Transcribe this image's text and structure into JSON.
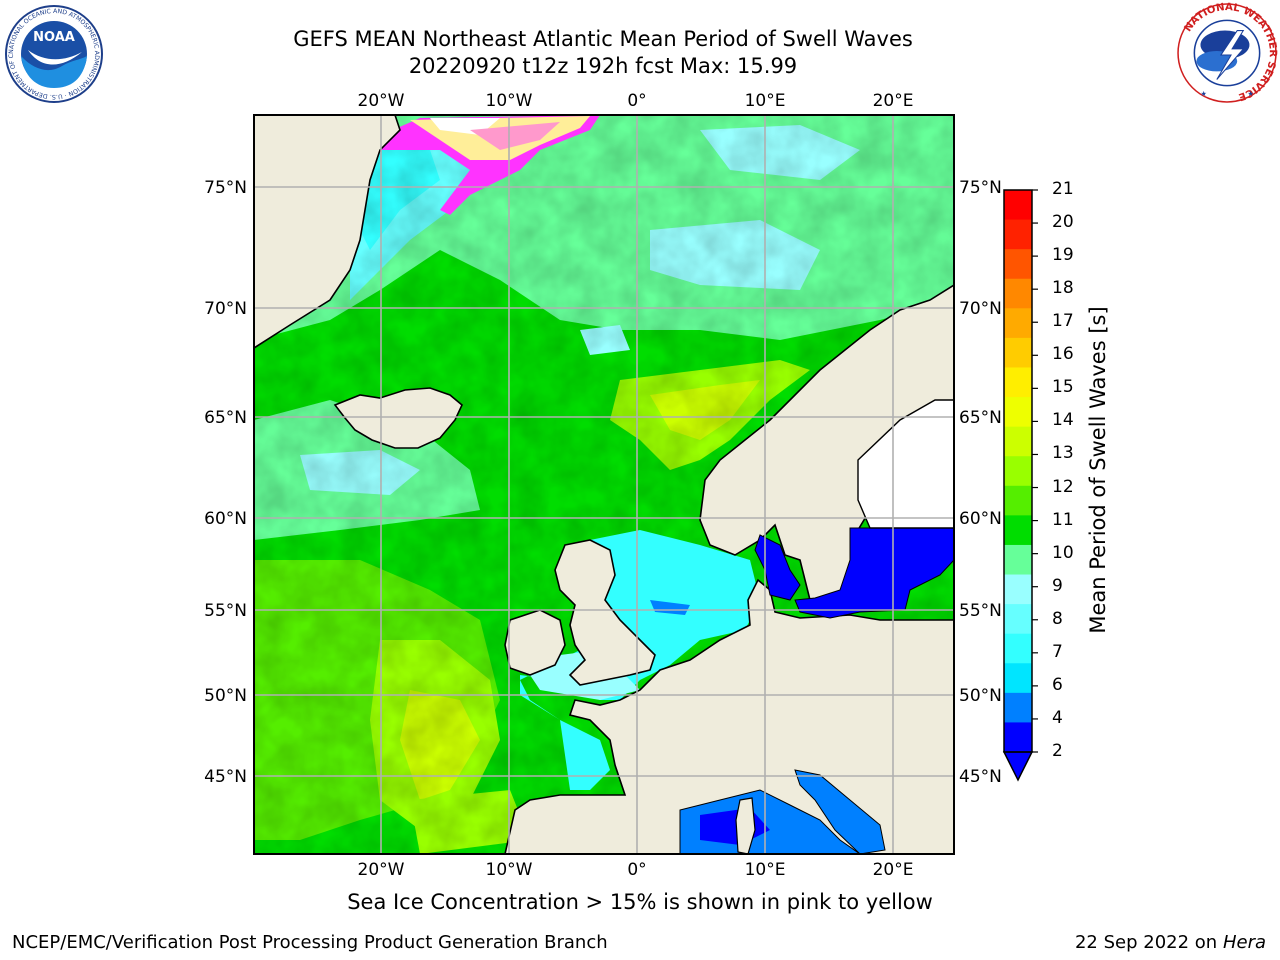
{
  "title": {
    "line1": "GEFS MEAN Northeast Atlantic Mean Period of Swell Waves",
    "line2": "20220920 t12z 192h fcst   Max: 15.99"
  },
  "map": {
    "lon_labels": [
      "20°W",
      "10°W",
      "0°",
      "10°E",
      "20°E"
    ],
    "lat_labels": [
      "75°N",
      "70°N",
      "65°N",
      "60°N",
      "55°N",
      "50°N",
      "45°N"
    ],
    "land_color": "#efecdc",
    "ice_colors": [
      "#ff33ff",
      "#ff99cc",
      "#ffee99",
      "#ffffff"
    ]
  },
  "colorbar": {
    "title": "Mean Period of Swell Waves [s]",
    "ticks": [
      "2",
      "4",
      "6",
      "7",
      "8",
      "9",
      "10",
      "11",
      "12",
      "13",
      "14",
      "15",
      "16",
      "17",
      "18",
      "19",
      "20",
      "21"
    ],
    "colors": [
      "#0000ff",
      "#0080ff",
      "#00e5ff",
      "#33ffff",
      "#66ffff",
      "#99ffff",
      "#66ff99",
      "#00dd00",
      "#55ee00",
      "#99ff00",
      "#ccff00",
      "#eeff00",
      "#ffee00",
      "#ffcc00",
      "#ffaa00",
      "#ff8800",
      "#ff5500",
      "#ff2200",
      "#ff0000"
    ]
  },
  "caption": "Sea Ice Concentration > 15% is shown in pink to yellow",
  "footer": {
    "left": "NCEP/EMC/Verification Post Processing Product Generation Branch",
    "right_date": "22 Sep 2022 on",
    "right_host": "Hera"
  },
  "logos": {
    "noaa_text": "NOAA",
    "noaa_ring": "NATIONAL OCEANIC AND ATMOSPHERIC ADMINISTRATION · U.S. DEPARTMENT OF COMMERCE",
    "nws_ring": "NATIONAL WEATHER SERVICE"
  }
}
